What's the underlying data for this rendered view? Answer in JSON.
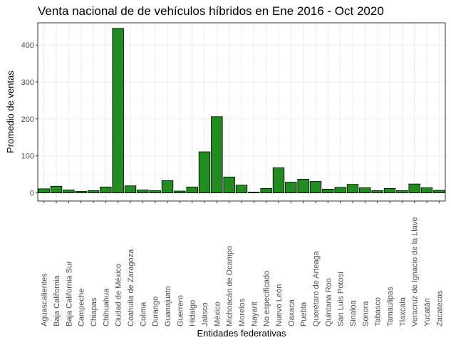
{
  "chart_data": {
    "type": "bar",
    "title": "Venta nacional de de vehículos híbridos en Ene 2016 - Oct 2020",
    "xlabel": "Entidades federativas",
    "ylabel": "Promedio de ventas",
    "ylim": [
      -22,
      460
    ],
    "yticks": [
      0,
      100,
      200,
      300,
      400
    ],
    "grid": true,
    "bar_color": "#228b22",
    "categories": [
      "Aguascalientes",
      "Baja California",
      "Baja California Sur",
      "Campeche",
      "Chiapas",
      "Chihuahua",
      "Ciudad de México",
      "Coahuila de Zaragoza",
      "Colima",
      "Durango",
      "Guanajuato",
      "Guerrero",
      "Hidalgo",
      "Jalisco",
      "México",
      "Michoacán de Ocampo",
      "Morelos",
      "Nayarit",
      "No especificado",
      "Nuevo León",
      "Oaxaca",
      "Puebla",
      "Querétaro de Arteaga",
      "Quintana Roo",
      "San Luis Potosí",
      "Sinaloa",
      "Sonora",
      "Tabasco",
      "Tamaulipas",
      "Tlaxcala",
      "Veracruz de Ignacio de la Llave",
      "Yucatán",
      "Zacatecas"
    ],
    "values": [
      11,
      18,
      8,
      4,
      6,
      16,
      445,
      19,
      8,
      6,
      33,
      5,
      16,
      111,
      206,
      43,
      21,
      2,
      12,
      68,
      29,
      37,
      31,
      10,
      15,
      23,
      14,
      6,
      12,
      6,
      24,
      14,
      7
    ]
  }
}
